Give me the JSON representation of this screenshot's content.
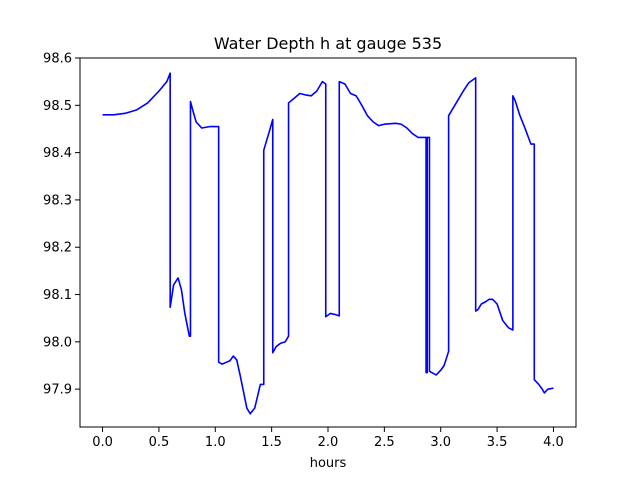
{
  "chart_data": {
    "type": "line",
    "title": "Water Depth h at gauge 535",
    "xlabel": "hours",
    "ylabel": "",
    "xlim": [
      -0.2,
      4.2
    ],
    "ylim": [
      97.82,
      98.6
    ],
    "xticks": [
      0.0,
      0.5,
      1.0,
      1.5,
      2.0,
      2.5,
      3.0,
      3.5,
      4.0
    ],
    "xtick_labels": [
      "0.0",
      "0.5",
      "1.0",
      "1.5",
      "2.0",
      "2.5",
      "3.0",
      "3.5",
      "4.0"
    ],
    "yticks": [
      97.9,
      98.0,
      98.1,
      98.2,
      98.3,
      98.4,
      98.5,
      98.6
    ],
    "ytick_labels": [
      "97.9",
      "98.0",
      "98.1",
      "98.2",
      "98.3",
      "98.4",
      "98.5",
      "98.6"
    ],
    "grid": false,
    "color": "#0000ff",
    "series": [
      {
        "x": [
          0.0,
          0.1,
          0.2,
          0.3,
          0.4,
          0.5,
          0.57,
          0.6,
          0.6,
          0.63,
          0.67,
          0.7,
          0.73,
          0.77,
          0.78,
          0.78,
          0.8,
          0.83,
          0.88,
          0.95,
          1.02,
          1.03,
          1.03,
          1.06,
          1.1,
          1.13,
          1.16,
          1.19,
          1.22,
          1.25,
          1.28,
          1.31,
          1.35,
          1.4,
          1.43,
          1.43,
          1.48,
          1.51,
          1.51,
          1.54,
          1.58,
          1.62,
          1.65,
          1.65,
          1.7,
          1.75,
          1.8,
          1.85,
          1.9,
          1.95,
          1.98,
          1.98,
          2.02,
          2.06,
          2.1,
          2.1,
          2.15,
          2.2,
          2.25,
          2.3,
          2.35,
          2.4,
          2.45,
          2.5,
          2.6,
          2.65,
          2.7,
          2.75,
          2.8,
          2.85,
          2.87,
          2.87,
          2.88,
          2.88,
          2.9,
          2.9,
          2.92,
          2.96,
          3.0,
          3.03,
          3.07,
          3.07,
          3.1,
          3.15,
          3.2,
          3.25,
          3.31,
          3.31,
          3.33,
          3.36,
          3.4,
          3.43,
          3.46,
          3.5,
          3.55,
          3.6,
          3.64,
          3.64,
          3.66,
          3.7,
          3.75,
          3.8,
          3.83,
          3.83,
          3.87,
          3.9,
          3.92,
          3.95,
          4.0
        ],
        "y": [
          98.48,
          98.48,
          98.483,
          98.49,
          98.505,
          98.53,
          98.55,
          98.568,
          98.073,
          98.12,
          98.135,
          98.11,
          98.06,
          98.012,
          98.012,
          98.508,
          98.49,
          98.465,
          98.452,
          98.455,
          98.455,
          98.455,
          97.957,
          97.953,
          97.957,
          97.96,
          97.97,
          97.962,
          97.93,
          97.895,
          97.86,
          97.848,
          97.86,
          97.91,
          97.91,
          98.405,
          98.445,
          98.47,
          97.977,
          97.99,
          97.997,
          98.0,
          98.012,
          98.505,
          98.515,
          98.525,
          98.522,
          98.52,
          98.53,
          98.55,
          98.545,
          98.053,
          98.06,
          98.058,
          98.055,
          98.55,
          98.545,
          98.525,
          98.52,
          98.5,
          98.478,
          98.465,
          98.457,
          98.46,
          98.462,
          98.46,
          98.452,
          98.44,
          98.432,
          98.432,
          98.432,
          97.935,
          97.935,
          98.432,
          98.432,
          97.938,
          97.935,
          97.93,
          97.94,
          97.95,
          97.98,
          98.478,
          98.49,
          98.51,
          98.53,
          98.548,
          98.558,
          98.065,
          98.068,
          98.08,
          98.085,
          98.09,
          98.09,
          98.08,
          98.045,
          98.03,
          98.025,
          98.52,
          98.51,
          98.48,
          98.45,
          98.418,
          98.418,
          97.92,
          97.91,
          97.9,
          97.892,
          97.9,
          97.902
        ]
      }
    ]
  }
}
